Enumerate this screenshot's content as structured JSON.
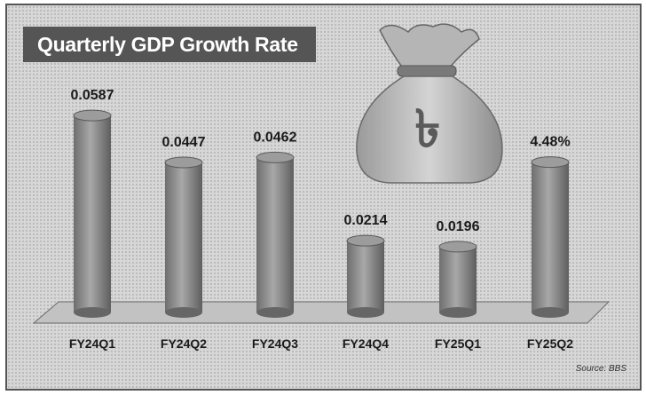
{
  "chart_data": {
    "type": "bar",
    "title": "Quarterly  GDP Growth Rate",
    "categories": [
      "FY24Q1",
      "FY24Q2",
      "FY24Q3",
      "FY24Q4",
      "FY25Q1",
      "FY25Q2"
    ],
    "values": [
      0.0587,
      0.0447,
      0.0462,
      0.0214,
      0.0196,
      0.0448
    ],
    "value_labels": [
      "0.0587",
      "0.0447",
      "0.0462",
      "0.0214",
      "0.0196",
      "4.48%"
    ],
    "source": "Source: BBS",
    "grid": false,
    "legend": "none",
    "bar_color": "#8a8a8a",
    "icon": "taka-money-bag-icon"
  }
}
